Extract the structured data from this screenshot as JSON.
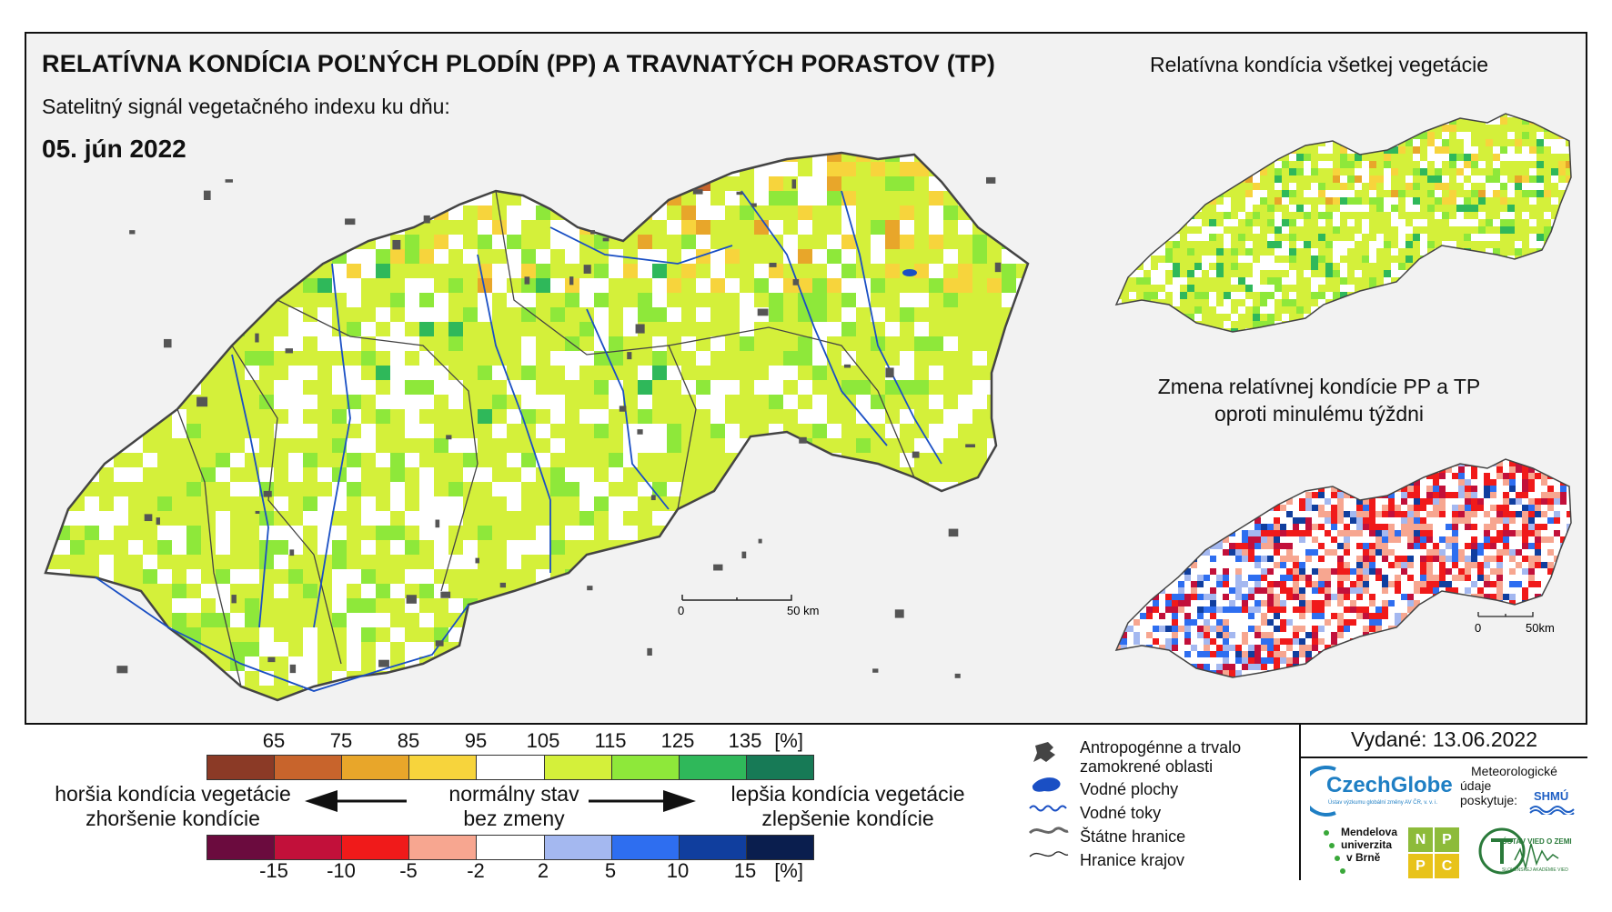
{
  "header": {
    "title": "RELATÍVNA KONDÍCIA POĽNÝCH PLODÍN (PP) A TRAVNATÝCH PORASTOV (TP)",
    "subtitle": "Satelitný signál vegetačného indexu ku dňu:",
    "date": "05. jún 2022"
  },
  "side_maps": {
    "all_vegetation_title": "Relatívna kondícia všetkej vegetácie",
    "change_title_line1": "Zmena relatívnej kondície PP a TP",
    "change_title_line2": "oproti minulému týždni"
  },
  "scalebars": {
    "main": {
      "start": "0",
      "end": "50 km"
    },
    "small": {
      "start": "0",
      "end": "50km"
    }
  },
  "legend": {
    "condition_ticks": [
      "65",
      "75",
      "85",
      "95",
      "105",
      "115",
      "125",
      "135",
      "[%]"
    ],
    "condition_colors": [
      "#8b3a26",
      "#c8642c",
      "#e8a62a",
      "#f7d43c",
      "#ffffff",
      "#d4f03a",
      "#8ee83a",
      "#2fb85a",
      "#177a56"
    ],
    "change_ticks": [
      "-15",
      "-10",
      "-5",
      "-2",
      "2",
      "5",
      "10",
      "15",
      "[%]"
    ],
    "change_colors": [
      "#6b0b3e",
      "#c2103a",
      "#f01a1a",
      "#f7a690",
      "#ffffff",
      "#a4b8f0",
      "#2e6ef0",
      "#103e9e",
      "#0a1e4e"
    ],
    "worse_line1": "horšia kondícia vegetácie",
    "worse_line2": "zhoršenie kondície",
    "normal_line1": "normálny stav",
    "normal_line2": "bez zmeny",
    "better_line1": "lepšia kondícia vegetácie",
    "better_line2": "zlepšenie kondície"
  },
  "map_legend": {
    "anthropogenic_line1": "Antropogénne a trvalo",
    "anthropogenic_line2": "zamokrené oblasti",
    "water_areas": "Vodné plochy",
    "water_streams": "Vodné toky",
    "state_borders": "Štátne hranice",
    "region_borders": "Hranice krajov"
  },
  "issued": "Vydané: 13.06.2022",
  "credits": {
    "czechglobe": "CzechGlobe",
    "czechglobe_sub": "Ústav výzkumu globální změny AV ČR, v. v. i.",
    "meteo_line1": "Meteorologické",
    "meteo_line2": "údaje",
    "meteo_line3": "poskytuje:",
    "shmu": "SHMÚ",
    "mendel_line1": "Mendelova",
    "mendel_line2": "univerzita",
    "mendel_line3": "v Brně",
    "nppc": [
      "N",
      "P",
      "P",
      "C"
    ],
    "uvz_line1": "ÚSTAV VIED O ZEMI",
    "uvz_line2": "SLOVENSKEJ AKADÉMIE VIED"
  },
  "colors": {
    "river": "#1a4fc4",
    "border": "#333333",
    "urban": "#555555"
  }
}
